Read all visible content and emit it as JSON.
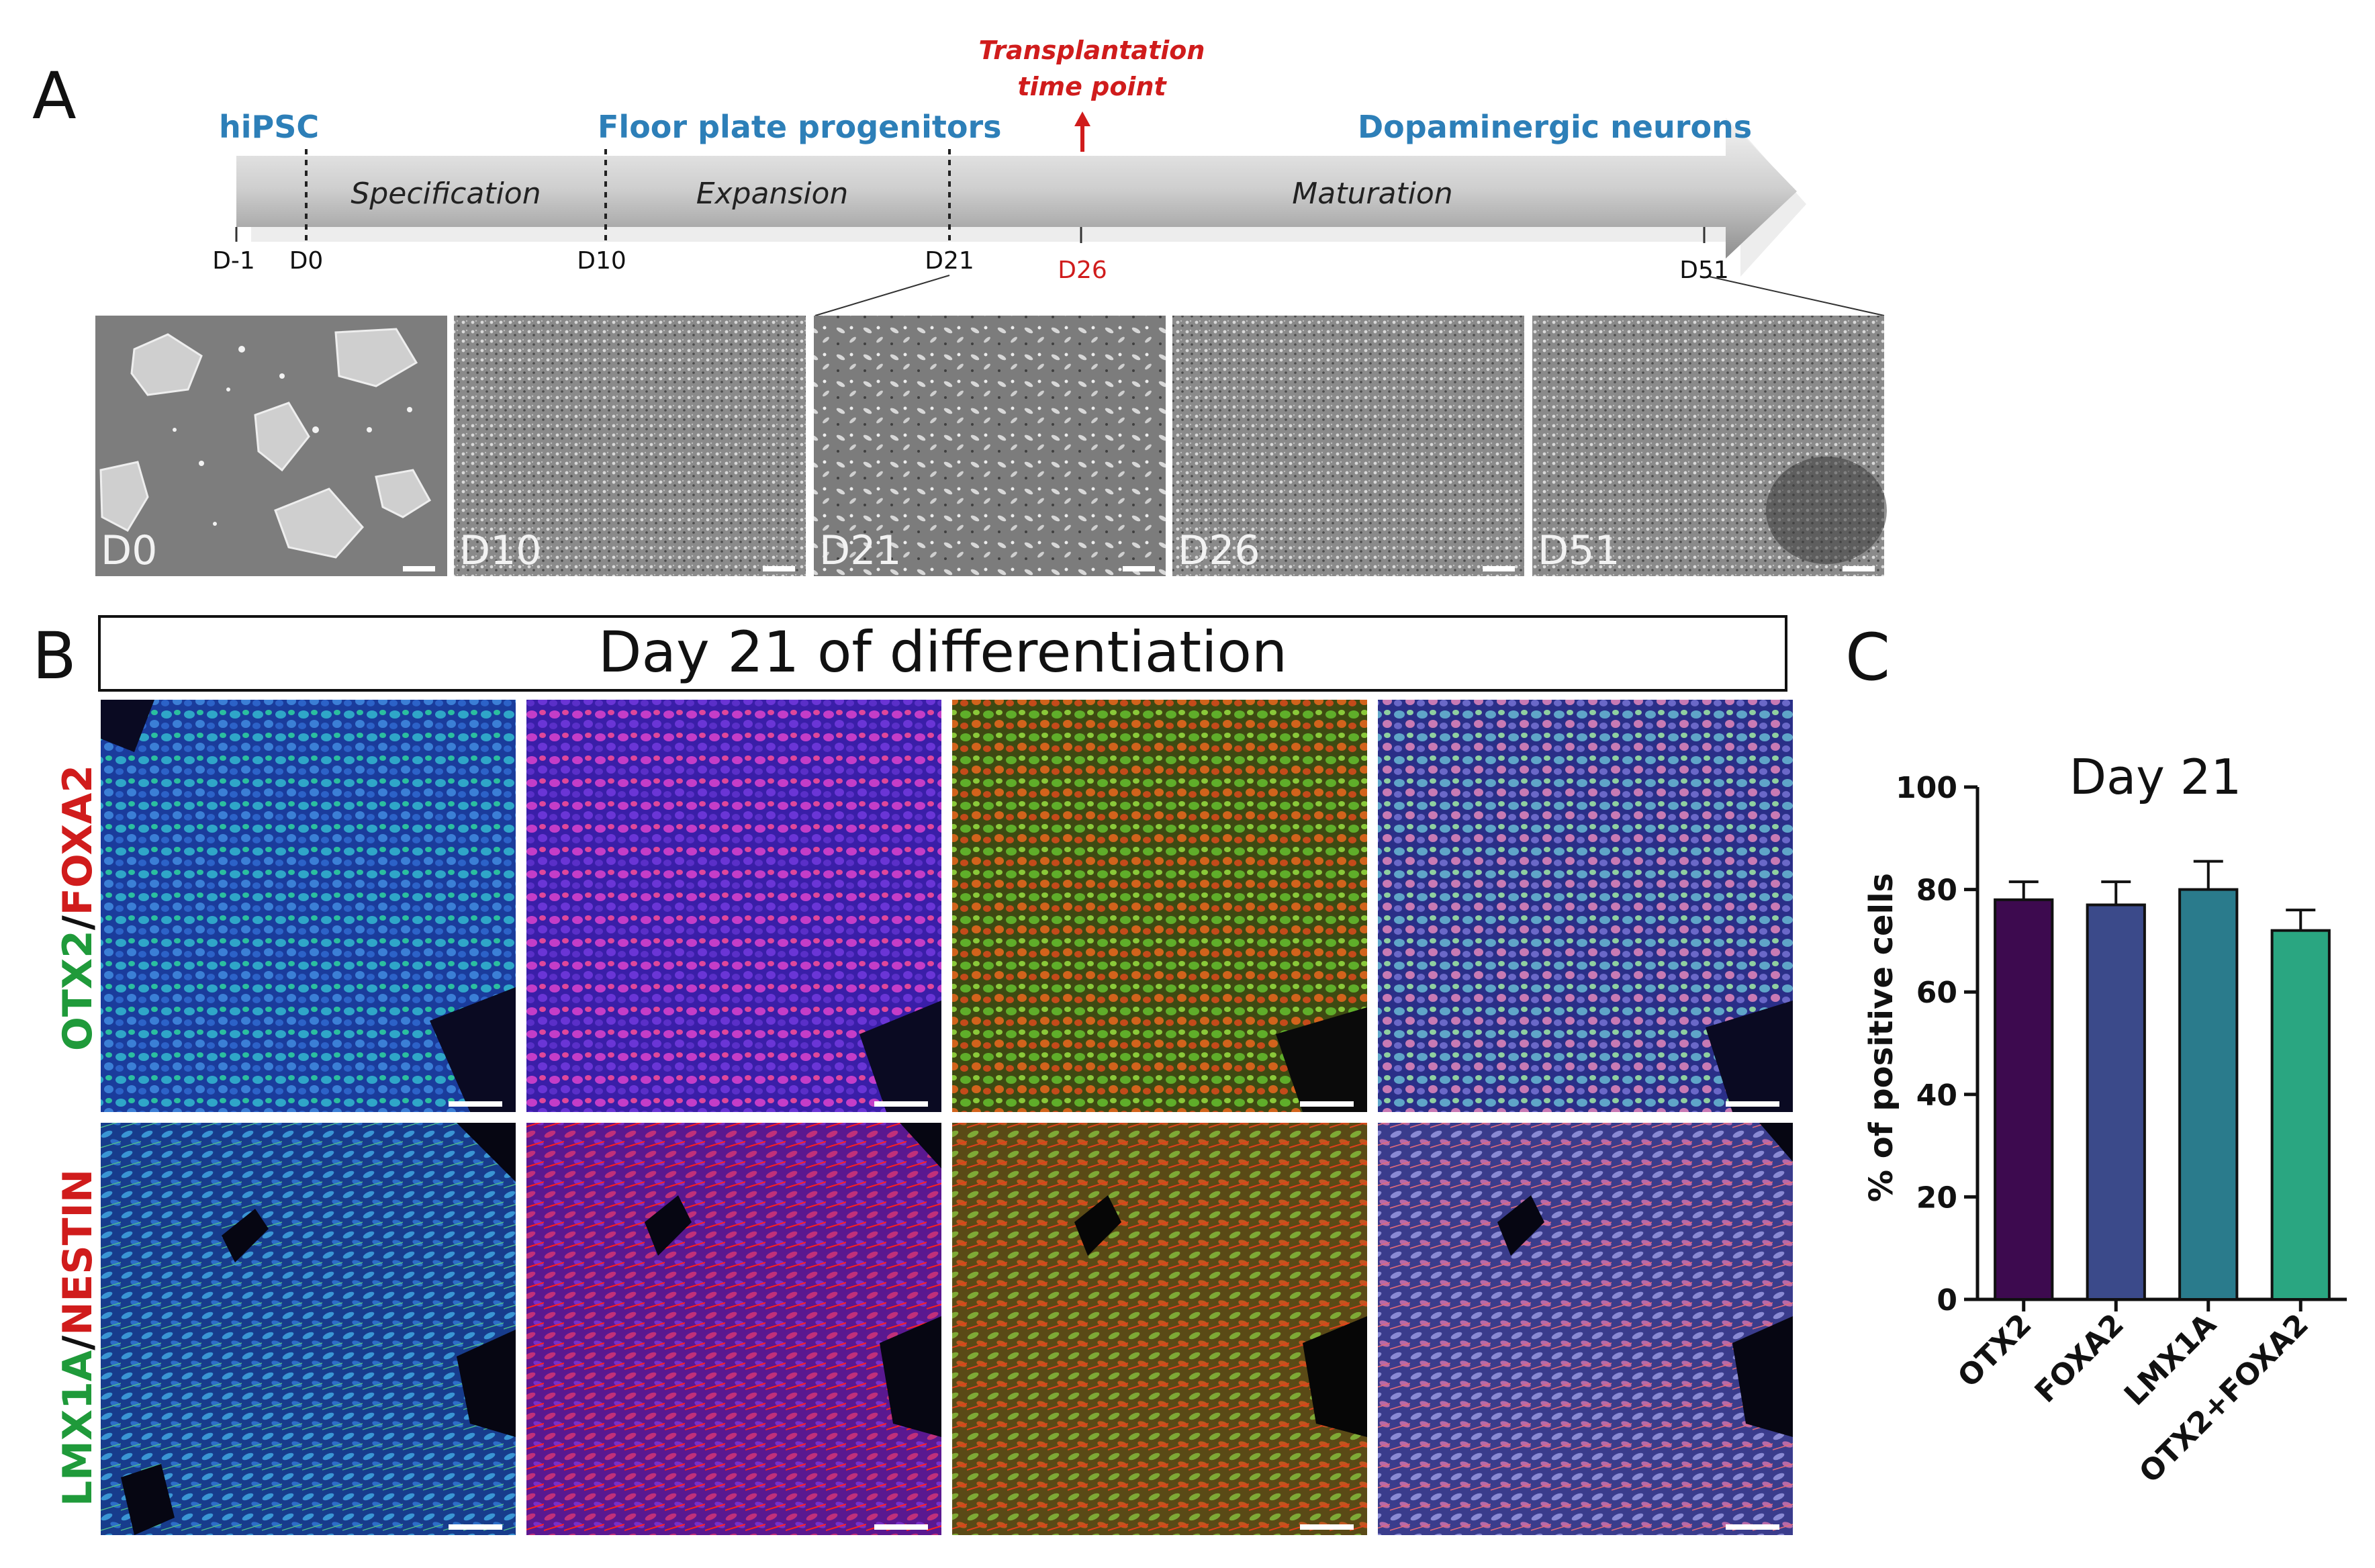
{
  "panel_a": {
    "letter": "A",
    "stage_labels": {
      "hipsc": "hiPSC",
      "floor_plate": "Floor plate progenitors",
      "dopaminergic": "Dopaminergic neurons"
    },
    "transplantation": {
      "line1": "Transplantation",
      "line2": "time point"
    },
    "phases": [
      "Specification",
      "Expansion",
      "Maturation"
    ],
    "ticks": [
      "D-1",
      "D0",
      "D10",
      "D21",
      "D26",
      "D51"
    ],
    "micrographs": [
      "D0",
      "D10",
      "D21",
      "D26",
      "D51"
    ]
  },
  "panel_b": {
    "letter": "B",
    "banner": "Day 21 of differentiation",
    "row1_label": {
      "green": "OTX2",
      "sep": "/",
      "red": "FOXA2"
    },
    "row2_label": {
      "green": "LMX1A",
      "sep": "/",
      "red": "NESTIN"
    }
  },
  "panel_c": {
    "letter": "C"
  },
  "colors": {
    "label_blue": "#2d7fb8",
    "red": "#d01c1c",
    "green": "#1f9a3a"
  },
  "chart_data": {
    "type": "bar",
    "title": "Day 21",
    "xlabel": "",
    "ylabel": "% of positive cells",
    "categories": [
      "OTX2",
      "FOXA2",
      "LMX1A",
      "OTX2+FOXA2"
    ],
    "values": [
      78,
      77,
      80,
      72
    ],
    "errors": [
      3.5,
      4.5,
      5.5,
      4
    ],
    "colors": [
      "#3d0a4f",
      "#3b4a8a",
      "#2a7b8c",
      "#2aa681"
    ],
    "ylim": [
      0,
      100
    ],
    "yticks": [
      "0",
      "20",
      "40",
      "60",
      "80",
      "100"
    ]
  }
}
